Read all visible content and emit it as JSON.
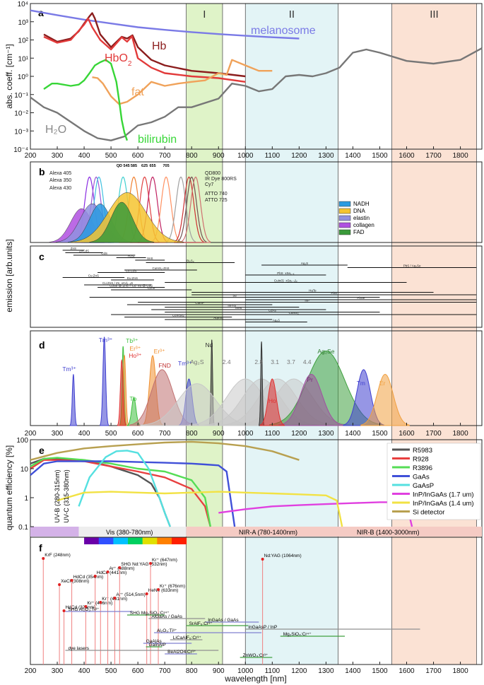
{
  "figure": {
    "x_axis_label": "wavelength [nm]",
    "x_range": [
      200,
      1880
    ],
    "x_ticks": [
      200,
      300,
      400,
      500,
      600,
      700,
      800,
      900,
      1000,
      1100,
      1200,
      1300,
      1400,
      1500,
      1600,
      1700,
      1800
    ],
    "windows": [
      {
        "label": "I",
        "range": [
          780,
          915
        ],
        "color": "#dff3c8"
      },
      {
        "label": "II",
        "range": [
          1000,
          1345
        ],
        "color": "#e3f4f6"
      },
      {
        "label": "III",
        "range": [
          1545,
          1860
        ],
        "color": "#fbe2d4"
      }
    ]
  },
  "chart_data": [
    {
      "panel": "a",
      "type": "line",
      "ylabel": "abs. coeff. [cm⁻¹]",
      "yscale": "log",
      "ylim": [
        0.0001,
        10000
      ],
      "y_tick_labels": [
        "10⁻⁴",
        "10⁻³",
        "10⁻²",
        "10⁻¹",
        "10⁰",
        "10¹",
        "10²",
        "10³",
        "10⁴"
      ],
      "series": [
        {
          "name": "melanosome",
          "color": "#7a7ae6",
          "x": [
            200,
            300,
            400,
            500,
            600,
            700,
            800,
            900,
            1000,
            1100,
            1200
          ],
          "y": [
            4200,
            2300,
            1300,
            800,
            500,
            360,
            270,
            210,
            170,
            140,
            120
          ]
        },
        {
          "name": "Hb",
          "color": "#8b1d1d",
          "x": [
            250,
            300,
            350,
            380,
            400,
            420,
            430,
            440,
            460,
            500,
            540,
            560,
            580,
            600,
            650,
            700,
            800,
            900,
            1000
          ],
          "y": [
            200,
            80,
            120,
            300,
            800,
            2000,
            3000,
            1500,
            200,
            40,
            150,
            120,
            180,
            40,
            8,
            4,
            2,
            1.5,
            1
          ]
        },
        {
          "name": "HbO2",
          "color": "#e23a3a",
          "x": [
            250,
            300,
            350,
            400,
            415,
            430,
            460,
            500,
            540,
            560,
            578,
            600,
            650,
            700,
            800,
            900,
            1000
          ],
          "y": [
            150,
            70,
            100,
            700,
            1500,
            500,
            100,
            30,
            140,
            80,
            160,
            10,
            3,
            1.5,
            1,
            0.8,
            0.5
          ]
        },
        {
          "name": "fat",
          "color": "#f0a25a",
          "x": [
            430,
            450,
            470,
            500,
            530,
            560,
            600,
            650,
            700,
            750,
            800,
            850,
            900,
            930,
            950,
            1000,
            1050,
            1100
          ],
          "y": [
            0.9,
            0.8,
            0.4,
            0.08,
            0.03,
            0.04,
            0.1,
            0.5,
            0.3,
            0.4,
            0.5,
            0.6,
            1.5,
            1.2,
            8,
            4,
            2,
            2
          ]
        },
        {
          "name": "H₂O",
          "color": "#777777",
          "x": [
            200,
            250,
            300,
            400,
            450,
            500,
            550,
            600,
            650,
            700,
            750,
            800,
            900,
            950,
            1000,
            1050,
            1100,
            1150,
            1200,
            1250,
            1300,
            1350,
            1400,
            1450,
            1500,
            1600,
            1700,
            1800,
            1880
          ],
          "y": [
            0.07,
            0.02,
            0.01,
            0.001,
            0.0004,
            0.0003,
            0.0005,
            0.002,
            0.003,
            0.006,
            0.02,
            0.02,
            0.06,
            0.4,
            0.3,
            0.15,
            0.2,
            1,
            1.2,
            1,
            1.5,
            3,
            20,
            30,
            20,
            7,
            5,
            8,
            35
          ]
        },
        {
          "name": "bilirubin",
          "color": "#37d637",
          "x": [
            250,
            280,
            300,
            350,
            380,
            400,
            420,
            440,
            460,
            480,
            500,
            520,
            530,
            540,
            550,
            560
          ],
          "y": [
            0.2,
            0.4,
            0.4,
            0.3,
            0.35,
            0.6,
            1.5,
            4,
            6,
            8,
            5,
            0.5,
            0.05,
            0.004,
            0.0008,
            0.0003
          ]
        }
      ]
    },
    {
      "panel": "b",
      "type": "area",
      "ylabel": "emission [arb.units]",
      "dye_labels": [
        "Alexa 405",
        "Alexa 350",
        "Alexa 430",
        "QD800",
        "IR Dye 800RS",
        "Cy7",
        "ATTO 740",
        "ATTO 725"
      ],
      "qd_labels": [
        "QD 545",
        "585",
        "625",
        "655",
        "705"
      ],
      "legend": [
        {
          "name": "NADH",
          "color": "#2a9ae0"
        },
        {
          "name": "DNA",
          "color": "#f4c430"
        },
        {
          "name": "elastin",
          "color": "#9090e0"
        },
        {
          "name": "collagen",
          "color": "#b050e0"
        },
        {
          "name": "FAD",
          "color": "#3a9a3a"
        }
      ],
      "series": [
        {
          "name": "collagen",
          "center": 390,
          "width": 40,
          "height": 0.42
        },
        {
          "name": "elastin",
          "center": 430,
          "width": 45,
          "height": 0.48
        },
        {
          "name": "NADH",
          "center": 460,
          "width": 40,
          "height": 0.48
        },
        {
          "name": "DNA",
          "center": 560,
          "width": 70,
          "height": 0.62
        },
        {
          "name": "FAD",
          "center": 540,
          "width": 40,
          "height": 0.5
        }
      ]
    },
    {
      "panel": "c",
      "type": "range",
      "items": [
        {
          "label": "ZnS",
          "from": 320,
          "to": 400
        },
        {
          "label": "ZnCdS",
          "from": 330,
          "to": 470
        },
        {
          "label": "CdS",
          "from": 360,
          "to": 590
        },
        {
          "label": "H₂Sₓ",
          "from": 520,
          "to": 630
        },
        {
          "label": "SnS",
          "from": 590,
          "to": 700
        },
        {
          "label": "Bi₂S₃",
          "from": 630,
          "to": 960
        },
        {
          "label": "Ag₂S",
          "from": 1060,
          "to": 1380
        },
        {
          "label": "PbS / Ag₂Se",
          "from": 1380,
          "to": 1860
        },
        {
          "label": "CuInS₂-ZnS",
          "from": 550,
          "to": 820
        },
        {
          "label": "Cu:CdS",
          "from": 450,
          "to": 700
        },
        {
          "label": "PbS_xSe₁₋ₓ",
          "from": 1000,
          "to": 1300
        },
        {
          "label": "Cu:ZnS",
          "from": 320,
          "to": 550
        },
        {
          "label": "Eu:ZnS",
          "from": 500,
          "to": 660
        },
        {
          "label": "CuIn(S_xSe₁₋ₓ)₂",
          "from": 700,
          "to": 1600
        },
        {
          "label": "Cu:ZnS / Zn_xCd₁₋ₓS",
          "from": 400,
          "to": 650
        },
        {
          "label": "CdSe @ ZnS – Cd_xS @ CdS",
          "from": 450,
          "to": 700
        },
        {
          "label": "CdTe",
          "from": 500,
          "to": 800
        },
        {
          "label": "HgTe",
          "from": 800,
          "to": 1700
        },
        {
          "label": "PbS",
          "from": 800,
          "to": 1860
        },
        {
          "label": "Se",
          "from": 420,
          "to": 1500
        },
        {
          "label": "PbSe",
          "from": 1000,
          "to": 1860
        },
        {
          "label": "InP",
          "from": 600,
          "to": 1860
        },
        {
          "label": "CuInP",
          "from": 560,
          "to": 1100
        },
        {
          "label": "InPAs",
          "from": 700,
          "to": 1200
        },
        {
          "label": "InAs",
          "from": 650,
          "to": 1300
        },
        {
          "label": "CdAs",
          "from": 700,
          "to": 1500
        },
        {
          "label": "CuInS₂",
          "from": 500,
          "to": 1860
        },
        {
          "label": "CuInSe₂",
          "from": 550,
          "to": 950
        },
        {
          "label": "AgInS₂",
          "from": 700,
          "to": 1100
        },
        {
          "label": "Ag₂S",
          "from": 1000,
          "to": 1230
        }
      ]
    },
    {
      "panel": "d",
      "type": "area",
      "peak_labels": [
        "Tm³⁺",
        "Tm³⁺",
        "Tb³⁺",
        "Er³⁺",
        "Ho³⁺",
        "Tb",
        "Er³⁺",
        "FND",
        "Tm³⁺",
        "Nd",
        "Ag₂S",
        "2.4",
        "2.8",
        "3.1",
        "3.7",
        "4.4",
        "Ag₂Se",
        "Pr",
        "Ho",
        "Tm",
        "Er"
      ]
    },
    {
      "panel": "e",
      "type": "line",
      "ylabel": "quantum efficiency [%]",
      "yscale": "log",
      "ylim": [
        0.1,
        100
      ],
      "y_tick_labels": [
        "0.1",
        "1",
        "10",
        "100"
      ],
      "bands": [
        {
          "label": "UV-B (280-315nm)"
        },
        {
          "label": "UV-C (315-380nm)"
        },
        {
          "label": "Vis (380-780nm)"
        },
        {
          "label": "NIR-A (780-1400nm)"
        },
        {
          "label": "NIR-B (1400-3000nm)"
        }
      ],
      "legend": [
        {
          "name": "R5983",
          "color": "#555555"
        },
        {
          "name": "R928",
          "color": "#e84040"
        },
        {
          "name": "R3896",
          "color": "#55dd55"
        },
        {
          "name": "GaAs",
          "color": "#4050d8"
        },
        {
          "name": "GaAsP",
          "color": "#55e0e0"
        },
        {
          "name": "InP/InGaAs (1.7 um)",
          "color": "#e040e0"
        },
        {
          "name": "InP/InGaAs (1.4 um)",
          "color": "#f2e244"
        },
        {
          "name": "Si detector",
          "color": "#b8a050"
        }
      ],
      "series": [
        {
          "name": "R5983",
          "x": [
            200,
            250,
            300,
            400,
            500,
            600,
            650,
            680,
            700,
            720
          ],
          "y": [
            15,
            22,
            22,
            20,
            12,
            6,
            3,
            1,
            0.3,
            0.1
          ]
        },
        {
          "name": "R928",
          "x": [
            200,
            250,
            300,
            400,
            500,
            600,
            700,
            800,
            850,
            870
          ],
          "y": [
            10,
            20,
            20,
            18,
            12,
            8,
            5,
            2,
            0.5,
            0.1
          ]
        },
        {
          "name": "R3896",
          "x": [
            200,
            250,
            300,
            400,
            500,
            600,
            700,
            800,
            850,
            870
          ],
          "y": [
            12,
            22,
            24,
            20,
            15,
            10,
            8,
            4,
            1,
            0.1
          ]
        },
        {
          "name": "GaAs",
          "x": [
            200,
            250,
            300,
            400,
            500,
            600,
            700,
            800,
            850,
            900,
            930,
            960
          ],
          "y": [
            6,
            15,
            18,
            18,
            18,
            17,
            16,
            15,
            14,
            13,
            8,
            0.1
          ]
        },
        {
          "name": "GaAsP",
          "x": [
            380,
            420,
            480,
            520,
            560,
            600,
            640,
            680,
            700,
            720
          ],
          "y": [
            0.5,
            5,
            25,
            40,
            42,
            35,
            10,
            1,
            0.3,
            0.1
          ]
        },
        {
          "name": "InP/InGaAs (1.7 um)",
          "x": [
            900,
            1000,
            1100,
            1200,
            1300,
            1400,
            1500,
            1550,
            1600,
            1620
          ],
          "y": [
            0.3,
            0.4,
            0.5,
            0.55,
            0.6,
            0.65,
            0.7,
            0.7,
            0.6,
            0.1
          ]
        },
        {
          "name": "InP/InGaAs (1.4 um)",
          "x": [
            300,
            400,
            500,
            600,
            700,
            800,
            900,
            1000,
            1100,
            1200,
            1300,
            1340,
            1360
          ],
          "y": [
            0.8,
            1.5,
            1.6,
            1.5,
            1.4,
            1.5,
            1.6,
            1.5,
            1.4,
            1.3,
            1.2,
            0.8,
            0.1
          ]
        },
        {
          "name": "Si detector",
          "x": [
            200,
            300,
            400,
            500,
            600,
            700,
            800,
            900,
            1000,
            1100,
            1200
          ],
          "y": [
            20,
            35,
            50,
            60,
            70,
            80,
            85,
            75,
            60,
            40,
            20
          ]
        }
      ]
    },
    {
      "panel": "f",
      "type": "scatter",
      "lasers": [
        {
          "label": "KrF (248nm)",
          "x": 248
        },
        {
          "label": "XeCl (308nm)",
          "x": 308
        },
        {
          "label": "HdCd (325nm)",
          "x": 325
        },
        {
          "label": "HdCd (354nm)",
          "x": 354
        },
        {
          "label": "Kr⁺ (406nm)",
          "x": 406
        },
        {
          "label": "HdCd (441nm)",
          "x": 441
        },
        {
          "label": "Kr⁺ (461nm)",
          "x": 461
        },
        {
          "label": "Ar⁺ (488nm)",
          "x": 488
        },
        {
          "label": "Ar⁺ (514,5nm)",
          "x": 514
        },
        {
          "label": "SHG Nd:YAG (532nm)",
          "x": 532
        },
        {
          "label": "HeNe (633nm)",
          "x": 633
        },
        {
          "label": "Kr⁺ (647nm)",
          "x": 647
        },
        {
          "label": "Kr⁺ (676nm)",
          "x": 676
        },
        {
          "label": "Nd:YAG (1064nm)",
          "x": 1064
        }
      ],
      "tunable": [
        {
          "label": "SHG Al₂O₃:Ti³⁺",
          "from": 330,
          "to": 580
        },
        {
          "label": "SHG Mg₂SiO₄:Cr⁴⁺",
          "from": 560,
          "to": 700
        },
        {
          "label": "AlGaAs / GaAs",
          "from": 640,
          "to": 850
        },
        {
          "label": "InGaAs / GaAs",
          "from": 850,
          "to": 1050
        },
        {
          "label": "SrAlF₆:Cr³⁺",
          "from": 780,
          "to": 1010
        },
        {
          "label": "InGaAsP / InP",
          "from": 1000,
          "to": 1650
        },
        {
          "label": "Al₂O₃:Ti³⁺",
          "from": 660,
          "to": 1060
        },
        {
          "label": "Mg₂SiO₄:Cr⁴⁺",
          "from": 1130,
          "to": 1370
        },
        {
          "label": "LiCaAlF₆:Cr³⁺",
          "from": 720,
          "to": 840
        },
        {
          "label": "GaAlAs",
          "from": 620,
          "to": 800
        },
        {
          "label": "GaInAlP",
          "from": 630,
          "to": 690
        },
        {
          "label": "dye lasers",
          "from": 330,
          "to": 900
        },
        {
          "label": "BeAl2O4:Cr³⁺",
          "from": 700,
          "to": 820
        },
        {
          "label": "ZnWO₄:Cr³⁺",
          "from": 980,
          "to": 1100
        }
      ]
    }
  ]
}
